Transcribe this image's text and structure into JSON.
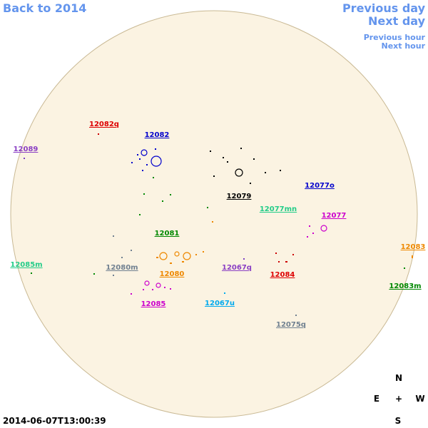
{
  "navigation": {
    "back": "Back to 2014",
    "previous_day": "Previous day",
    "next_day": "Next day",
    "previous_hour": "Previous hour",
    "next_hour": "Next hour"
  },
  "regions": [
    "12082q",
    "12082",
    "12089",
    "12079",
    "12077o",
    "12077mn",
    "12077",
    "12081",
    "12083",
    "12085m",
    "12080m",
    "12067q",
    "12084",
    "12080",
    "12083m",
    "12085",
    "12067u",
    "12075q"
  ],
  "compass": {
    "north": "N",
    "east": "E",
    "center": "+",
    "west": "W",
    "south": "S"
  },
  "timestamp": "2014-06-07T13:00:39"
}
